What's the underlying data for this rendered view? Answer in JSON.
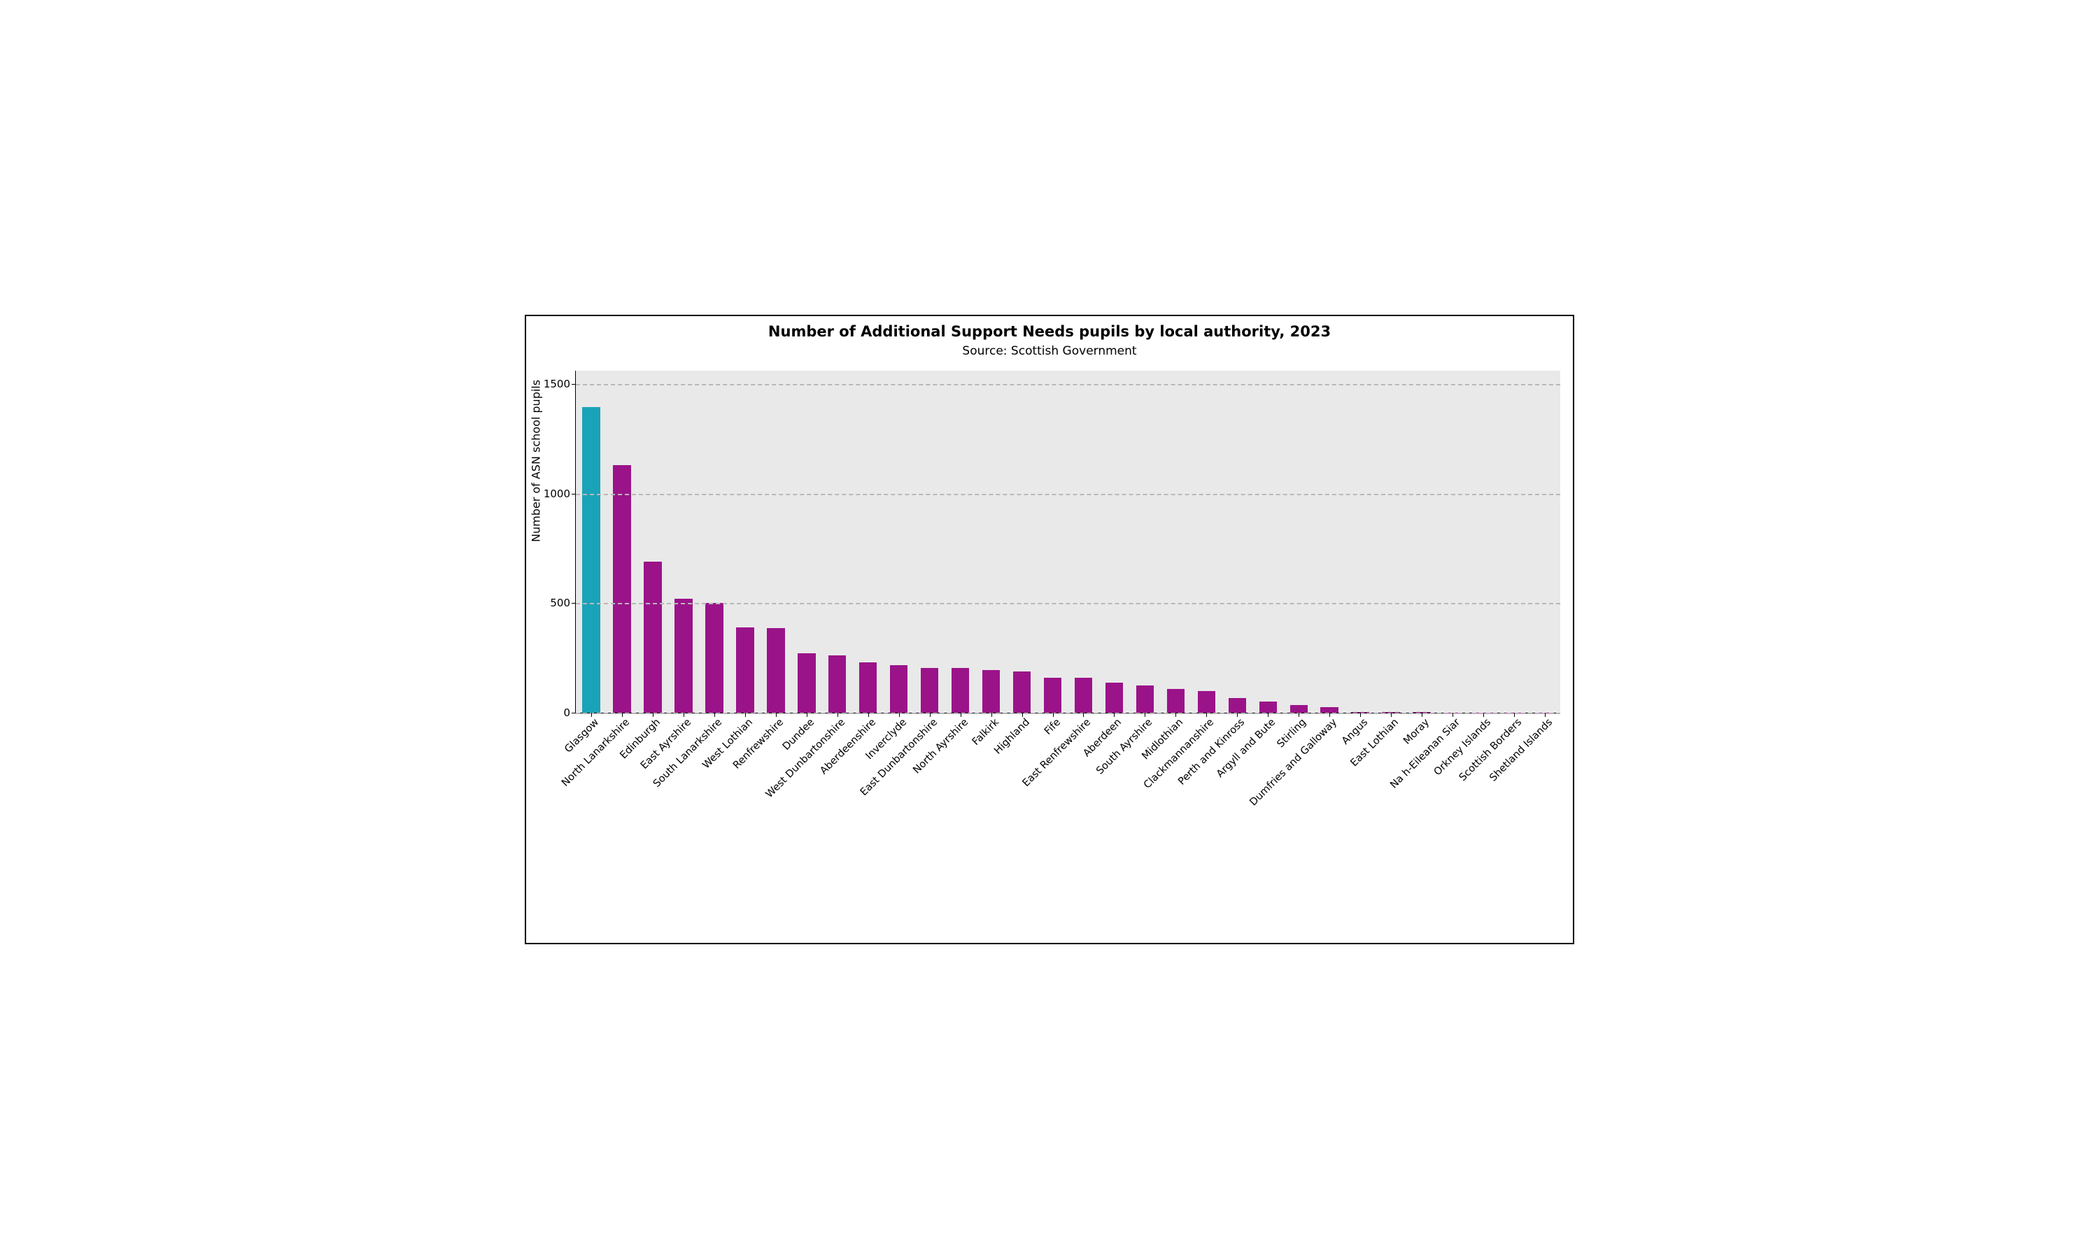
{
  "chart": {
    "type": "bar",
    "title": "Number of Additional Support Needs pupils by local authority, 2023",
    "subtitle": "Source: Scottish Government",
    "ylabel": "Number of ASN school pupils",
    "title_fontsize": 21,
    "subtitle_fontsize": 17,
    "ylabel_fontsize": 16,
    "tick_fontsize": 15,
    "xtick_fontsize": 14.5,
    "background_color": "#ffffff",
    "plot_background_color": "#e9e9e9",
    "grid_color": "#b8b8b8",
    "border_color": "#000000",
    "ylim": [
      0,
      1560
    ],
    "yticks": [
      0,
      500,
      1000,
      1500
    ],
    "highlight_color": "#1aa3b8",
    "series_color": "#9b1389",
    "bar_width_ratio": 0.58,
    "categories": [
      "Glasgow",
      "North Lanarkshire",
      "Edinburgh",
      "East Ayrshire",
      "South Lanarkshire",
      "West Lothian",
      "Renfrewshire",
      "Dundee",
      "West Dunbartonshire",
      "Aberdeenshire",
      "Inverclyde",
      "East Dunbartonshire",
      "North Ayrshire",
      "Falkirk",
      "Highland",
      "Fife",
      "East Renfrewshire",
      "Aberdeen",
      "South Ayrshire",
      "Midlothian",
      "Clackmannanshire",
      "Perth and Kinross",
      "Argyll and Bute",
      "Stirling",
      "Dumfries and Galloway",
      "Angus",
      "East Lothian",
      "Moray",
      "Na h-Eileanan Siar",
      "Orkney Islands",
      "Scottish Borders",
      "Shetland Islands"
    ],
    "values": [
      1395,
      1130,
      690,
      520,
      500,
      390,
      385,
      270,
      262,
      230,
      218,
      205,
      205,
      195,
      188,
      160,
      158,
      138,
      124,
      108,
      98,
      66,
      50,
      34,
      24,
      3,
      2,
      2,
      1,
      1,
      1,
      1
    ],
    "highlight_index": 0
  }
}
